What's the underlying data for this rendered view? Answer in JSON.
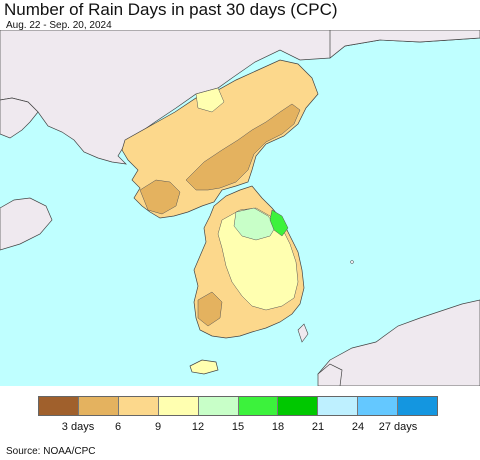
{
  "title": "Number of Rain Days in past 30 days (CPC)",
  "subtitle": "Aug. 22 - Sep. 20, 2024",
  "source": "Source: NOAA/CPC",
  "colors": {
    "sea": "#bfffff",
    "land_outside": "#efe9ef",
    "border": "#444444"
  },
  "legend": {
    "colors": [
      "#a0602c",
      "#e4b25f",
      "#fcd88c",
      "#ffffb0",
      "#c8ffc8",
      "#3cf23c",
      "#00c800",
      "#bef0ff",
      "#64c8ff",
      "#1496e0"
    ],
    "tick_labels": [
      "3 days",
      "6",
      "9",
      "12",
      "15",
      "18",
      "21",
      "24",
      "27 days"
    ]
  }
}
